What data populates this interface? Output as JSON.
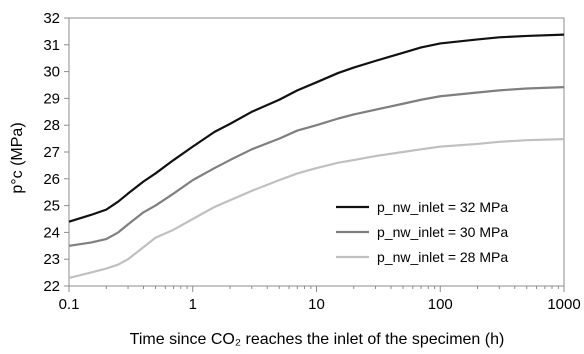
{
  "chart_data": {
    "type": "line",
    "xscale": "log",
    "xlim": [
      0.1,
      1000
    ],
    "ylim": [
      22,
      32
    ],
    "x_ticks": [
      "0.1",
      "1",
      "10",
      "100",
      "1000"
    ],
    "y_ticks": [
      "22",
      "23",
      "24",
      "25",
      "26",
      "27",
      "28",
      "29",
      "30",
      "31",
      "32"
    ],
    "xlabel": "Time since CO₂ reaches the inlet of the specimen (h)",
    "ylabel": "p°c (MPa)",
    "grid": false,
    "legend_position": "bottom-right",
    "series": [
      {
        "name": "p_nw_inlet = 32 MPa",
        "color": "#111111",
        "x": [
          0.1,
          0.15,
          0.2,
          0.25,
          0.3,
          0.4,
          0.5,
          0.7,
          1,
          1.5,
          2,
          3,
          5,
          7,
          10,
          15,
          20,
          30,
          50,
          70,
          100,
          200,
          300,
          500,
          1000
        ],
        "y": [
          24.4,
          24.65,
          24.85,
          25.15,
          25.45,
          25.9,
          26.2,
          26.7,
          27.2,
          27.75,
          28.05,
          28.5,
          28.95,
          29.3,
          29.6,
          29.95,
          30.15,
          30.4,
          30.7,
          30.9,
          31.05,
          31.2,
          31.28,
          31.33,
          31.38
        ]
      },
      {
        "name": "p_nw_inlet = 30 MPa",
        "color": "#7f7f7f",
        "x": [
          0.1,
          0.15,
          0.2,
          0.25,
          0.3,
          0.4,
          0.5,
          0.7,
          1,
          1.5,
          2,
          3,
          5,
          7,
          10,
          15,
          20,
          30,
          50,
          70,
          100,
          200,
          300,
          500,
          1000
        ],
        "y": [
          23.5,
          23.62,
          23.75,
          24.0,
          24.3,
          24.75,
          25.0,
          25.45,
          25.95,
          26.4,
          26.7,
          27.1,
          27.5,
          27.8,
          28.0,
          28.25,
          28.4,
          28.58,
          28.8,
          28.95,
          29.08,
          29.22,
          29.3,
          29.37,
          29.42
        ]
      },
      {
        "name": "p_nw_inlet = 28 MPa",
        "color": "#c0c0c0",
        "x": [
          0.1,
          0.15,
          0.2,
          0.25,
          0.3,
          0.4,
          0.5,
          0.7,
          1,
          1.5,
          2,
          3,
          5,
          7,
          10,
          15,
          20,
          30,
          50,
          70,
          100,
          200,
          300,
          500,
          1000
        ],
        "y": [
          22.3,
          22.5,
          22.65,
          22.8,
          23.0,
          23.45,
          23.8,
          24.1,
          24.5,
          24.95,
          25.2,
          25.55,
          25.95,
          26.2,
          26.4,
          26.6,
          26.7,
          26.85,
          27.0,
          27.1,
          27.2,
          27.3,
          27.38,
          27.44,
          27.48
        ]
      }
    ]
  }
}
